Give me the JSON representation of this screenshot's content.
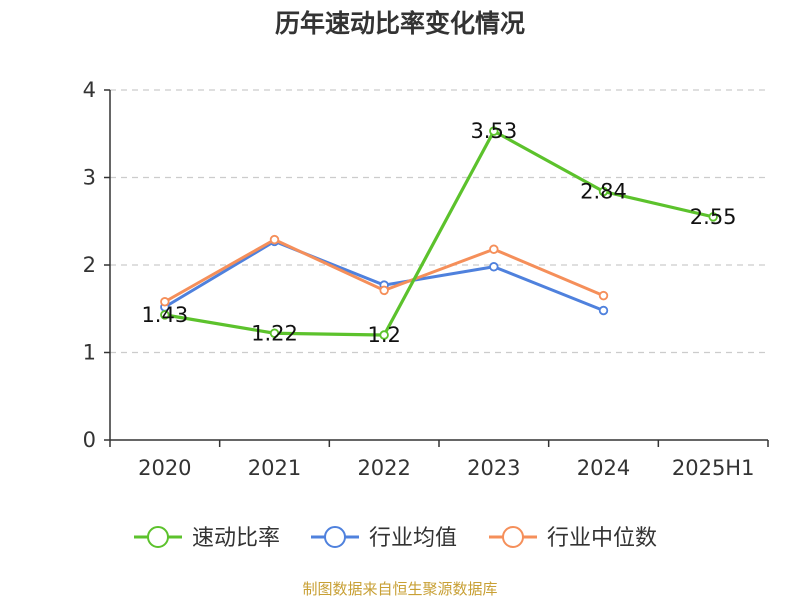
{
  "title": "历年速动比率变化情况",
  "footer": "制图数据来自恒生聚源数据库",
  "colors": {
    "series_0": "#5cc22c",
    "series_1": "#4f81dd",
    "series_2": "#f58f5a",
    "grid": "#cccccc",
    "axis": "#333333"
  },
  "chart_data": {
    "type": "line",
    "title": "历年速动比率变化情况",
    "xlabel": "",
    "ylabel": "",
    "categories": [
      "2020",
      "2021",
      "2022",
      "2023",
      "2024",
      "2025H1"
    ],
    "ylim": [
      0,
      4
    ],
    "yticks": [
      0,
      1,
      2,
      3,
      4
    ],
    "grid": true,
    "legend_position": "bottom",
    "series": [
      {
        "name": "速动比率",
        "values": [
          1.43,
          1.22,
          1.2,
          3.53,
          2.84,
          2.55
        ],
        "show_labels": true
      },
      {
        "name": "行业均值",
        "values": [
          1.52,
          2.27,
          1.77,
          1.98,
          1.48,
          null
        ],
        "show_labels": false
      },
      {
        "name": "行业中位数",
        "values": [
          1.58,
          2.29,
          1.71,
          2.18,
          1.65,
          null
        ],
        "show_labels": false
      }
    ]
  }
}
